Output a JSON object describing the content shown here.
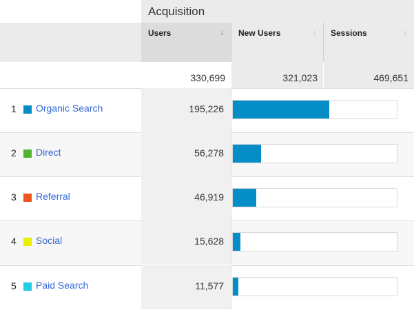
{
  "header": {
    "group_label": "Acquisition",
    "metrics": [
      {
        "label": "Users",
        "sort": "↓"
      },
      {
        "label": "New Users",
        "sort": "↓"
      },
      {
        "label": "Sessions",
        "sort": "↓"
      }
    ]
  },
  "totals": [
    "330,699",
    "321,023",
    "469,651"
  ],
  "rows": [
    {
      "rank": "1",
      "channel": "Organic Search",
      "users": "195,226",
      "users_fraction": 0.5903,
      "color": "#058dc7"
    },
    {
      "rank": "2",
      "channel": "Direct",
      "users": "56,278",
      "users_fraction": 0.1702,
      "color": "#50b432"
    },
    {
      "rank": "3",
      "channel": "Referral",
      "users": "46,919",
      "users_fraction": 0.1419,
      "color": "#ed561b"
    },
    {
      "rank": "4",
      "channel": "Social",
      "users": "15,628",
      "users_fraction": 0.0473,
      "color": "#edef00"
    },
    {
      "rank": "5",
      "channel": "Paid Search",
      "users": "11,577",
      "users_fraction": 0.035,
      "color": "#24cbe5"
    }
  ],
  "bar_color": "#058dc7"
}
